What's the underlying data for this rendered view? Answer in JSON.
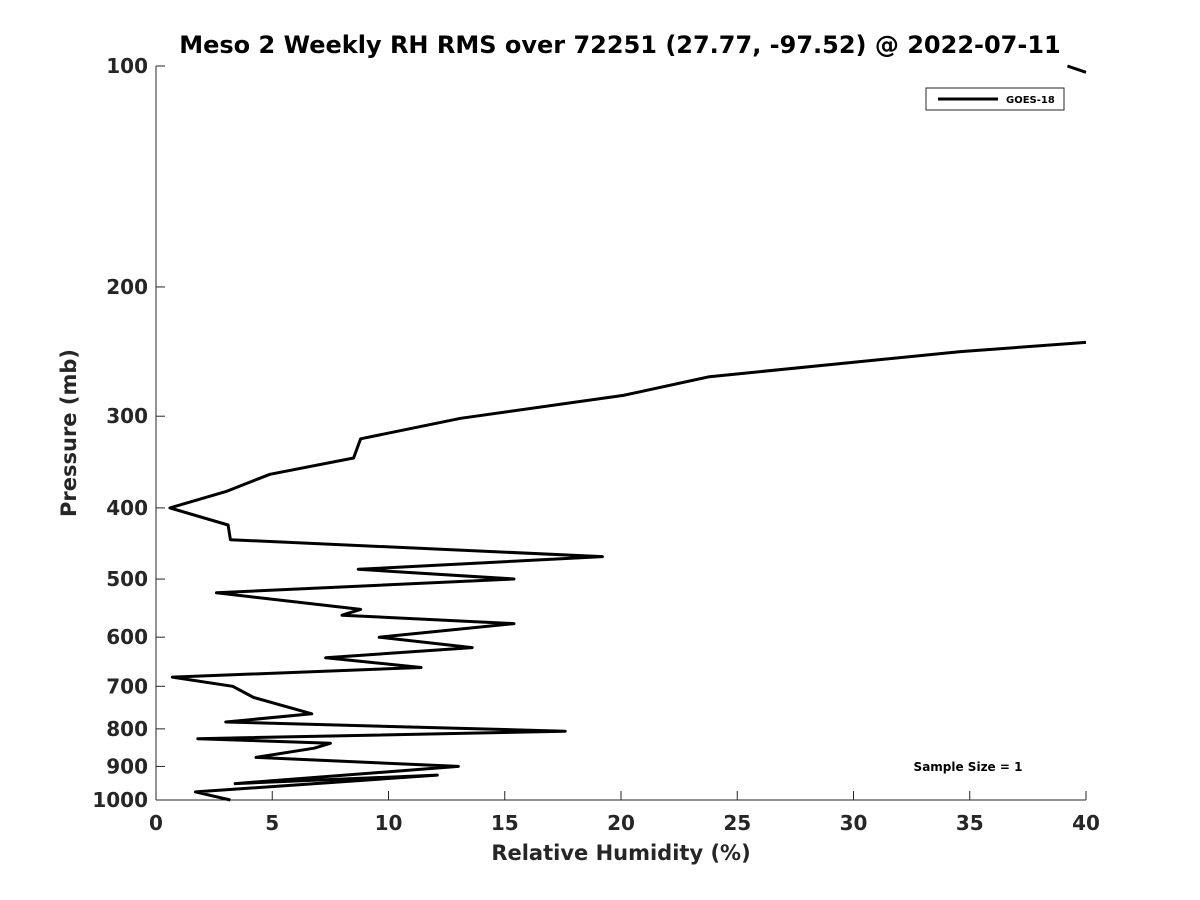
{
  "chart_data": {
    "type": "line",
    "title": "Meso 2 Weekly RH RMS over 72251 (27.77, -97.52) @ 2022-07-11",
    "xlabel": "Relative Humidity (%)",
    "ylabel": "Pressure (mb)",
    "xlim": [
      0,
      40
    ],
    "ylim": [
      1000,
      100
    ],
    "y_scale": "log",
    "x_ticks": [
      "0",
      "5",
      "10",
      "15",
      "20",
      "25",
      "30",
      "35",
      "40"
    ],
    "y_ticks": [
      "100",
      "200",
      "300",
      "400",
      "500",
      "600",
      "700",
      "800",
      "900",
      "1000"
    ],
    "grid": false,
    "legend_position": "top-right",
    "line_color": "#000000",
    "series": [
      {
        "name": "GOES-18",
        "points": [
          [
            3.2,
            1000
          ],
          [
            1.7,
            975
          ],
          [
            12.1,
            925
          ],
          [
            3.4,
            950
          ],
          [
            13.0,
            900
          ],
          [
            4.3,
            875
          ],
          [
            6.8,
            850
          ],
          [
            7.5,
            837
          ],
          [
            1.8,
            825
          ],
          [
            17.6,
            806
          ],
          [
            3.0,
            783
          ],
          [
            6.7,
            763
          ],
          [
            4.2,
            725
          ],
          [
            3.3,
            700
          ],
          [
            0.7,
            680
          ],
          [
            11.4,
            660
          ],
          [
            7.3,
            640
          ],
          [
            13.6,
            620
          ],
          [
            9.6,
            600
          ],
          [
            15.4,
            575
          ],
          [
            8.0,
            560
          ],
          [
            8.8,
            550
          ],
          [
            2.6,
            522
          ],
          [
            15.4,
            500
          ],
          [
            8.7,
            485
          ],
          [
            19.2,
            466
          ],
          [
            3.2,
            442
          ],
          [
            3.1,
            422
          ],
          [
            0.6,
            400
          ],
          [
            3.0,
            380
          ],
          [
            4.9,
            360
          ],
          [
            8.5,
            342
          ],
          [
            8.8,
            322
          ],
          [
            13.1,
            302
          ],
          [
            20.1,
            281
          ],
          [
            23.8,
            265
          ],
          [
            34.6,
            245
          ],
          [
            40.0,
            238
          ]
        ]
      },
      {
        "name": "",
        "points": [
          [
            39.2,
            100
          ],
          [
            40.0,
            102
          ]
        ]
      }
    ],
    "annotations": [
      "Sample Size = 1"
    ]
  }
}
